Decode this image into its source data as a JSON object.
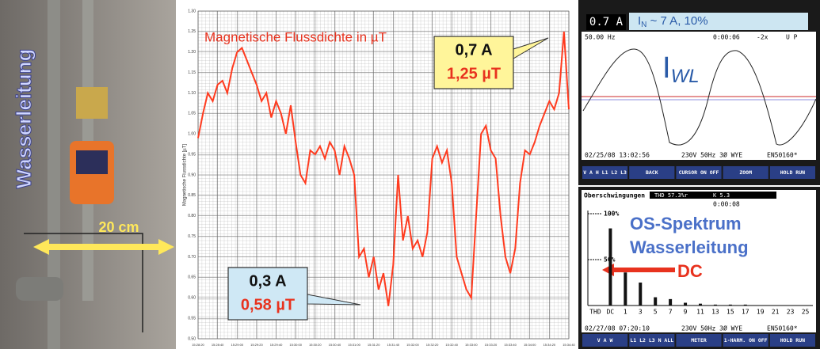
{
  "photo": {
    "pipe_label": "Wasserleitung",
    "distance": "20 cm"
  },
  "chart_data": [
    {
      "type": "line",
      "title": "Magnetische Flussdichte in µT",
      "y_label": "Magnetische Flussdichte [µT]",
      "categories": [
        "15:28:20",
        null,
        null,
        null,
        "15:28:40",
        null,
        null,
        null,
        "15:29:00",
        null,
        null,
        null,
        "15:29:20",
        null,
        null,
        null,
        "15:29:40",
        null,
        null,
        null,
        "15:30:00",
        null,
        null,
        null,
        "15:30:20",
        null,
        null,
        null,
        "15:30:40",
        null,
        null,
        null,
        "15:31:00",
        null,
        null,
        null,
        "15:31:20",
        null,
        null,
        null,
        "15:31:40",
        null,
        null,
        null,
        "15:32:00",
        null,
        null,
        null,
        "15:32:20",
        null,
        null,
        null,
        "15:32:40",
        null,
        null,
        null,
        "15:33:00",
        null,
        null,
        null,
        "15:33:20",
        null,
        null,
        null,
        "15:33:40",
        null,
        null,
        null,
        "15:34:00",
        null,
        null,
        null,
        "15:34:20",
        null,
        null,
        null,
        "15:34:40"
      ],
      "series": [
        {
          "name": "Magnetische Flussdichte",
          "color": "#ff3b1f",
          "values": [
            0.99,
            1.05,
            1.1,
            1.08,
            1.12,
            1.13,
            1.1,
            1.16,
            1.2,
            1.21,
            1.18,
            1.15,
            1.12,
            1.08,
            1.1,
            1.04,
            1.08,
            1.05,
            1.0,
            1.07,
            0.98,
            0.9,
            0.88,
            0.96,
            0.95,
            0.97,
            0.94,
            0.98,
            0.96,
            0.9,
            0.97,
            0.94,
            0.9,
            0.7,
            0.72,
            0.65,
            0.7,
            0.62,
            0.66,
            0.58,
            0.68,
            0.9,
            0.74,
            0.8,
            0.72,
            0.74,
            0.7,
            0.76,
            0.94,
            0.97,
            0.93,
            0.96,
            0.88,
            0.7,
            0.66,
            0.62,
            0.6,
            0.8,
            1.0,
            1.02,
            0.96,
            0.94,
            0.8,
            0.7,
            0.66,
            0.72,
            0.88,
            0.96,
            0.95,
            0.98,
            1.02,
            1.05,
            1.08,
            1.06,
            1.1,
            1.25,
            1.06
          ]
        }
      ],
      "ylim": [
        0.5,
        1.3
      ],
      "yticks": [
        {
          "value": 0.5,
          "label": "0.50"
        },
        {
          "value": 0.55,
          "label": "0.55"
        },
        {
          "value": 0.6,
          "label": "0.60"
        },
        {
          "value": 0.65,
          "label": "0.65"
        },
        {
          "value": 0.7,
          "label": "0.70"
        },
        {
          "value": 0.75,
          "label": "0.75"
        },
        {
          "value": 0.8,
          "label": "0.80"
        },
        {
          "value": 0.85,
          "label": "0.85"
        },
        {
          "value": 0.9,
          "label": "0.90"
        },
        {
          "value": 0.95,
          "label": "0.95"
        },
        {
          "value": 1.0,
          "label": "1.00"
        },
        {
          "value": 1.05,
          "label": "1.05"
        },
        {
          "value": 1.1,
          "label": "1.10"
        },
        {
          "value": 1.15,
          "label": "1.15"
        },
        {
          "value": 1.2,
          "label": "1.20"
        },
        {
          "value": 1.25,
          "label": "1.25"
        },
        {
          "value": 1.3,
          "label": "1.30"
        }
      ],
      "grid": true,
      "annotations": [
        {
          "current": "0,7 A",
          "flux": "1,25 µT"
        },
        {
          "current": "0,3 A",
          "flux": "0,58 µT"
        }
      ]
    },
    {
      "type": "bar",
      "title": "Oberschwingungen",
      "categories": [
        "THD",
        "DC",
        "1",
        "3",
        "5",
        "7",
        "9",
        "11",
        "13",
        "15",
        "17",
        "19",
        "21",
        "23",
        "25"
      ],
      "values": [
        null,
        84,
        36,
        25,
        9,
        7,
        3,
        2,
        1,
        1,
        1,
        0,
        0,
        0,
        0
      ],
      "color": "#111111",
      "ylim": [
        0,
        100
      ],
      "yticks": [
        {
          "value": 50,
          "label": "50%"
        },
        {
          "value": 100,
          "label": "100%"
        }
      ]
    }
  ],
  "scope1": {
    "reading": "0.7 A",
    "label_i": "I",
    "label_sub": "N",
    "label_rest": " ~ 7 A, 10%",
    "freq": "50.00 Hz",
    "time": "0:00:06",
    "zoom": "-2x",
    "status": "U P",
    "wave_i": "I",
    "wave_sub": "WL",
    "date": "02/25/08 13:02:56",
    "config": "230V 50Hz 3Ø WYE",
    "standard": "EN50160*",
    "buttons": [
      "V A H L1 L2 L3",
      "BACK",
      "CURSOR ON OFF",
      "ZOOM",
      "HOLD RUN"
    ]
  },
  "scope2": {
    "thd": "THD 57.3%r",
    "k": "K 5.3",
    "time": "0:00:08",
    "title1": "OS-Spektrum",
    "title2": "Wasserleitung",
    "dc": "DC",
    "date": "02/27/08 07:20:10",
    "config": "230V 50Hz 3Ø WYE",
    "standard": "EN50160*",
    "buttons": [
      "V A W",
      "L1 L2 L3 N ALL",
      "METER",
      "1-HARM. ON OFF",
      "HOLD RUN"
    ]
  }
}
